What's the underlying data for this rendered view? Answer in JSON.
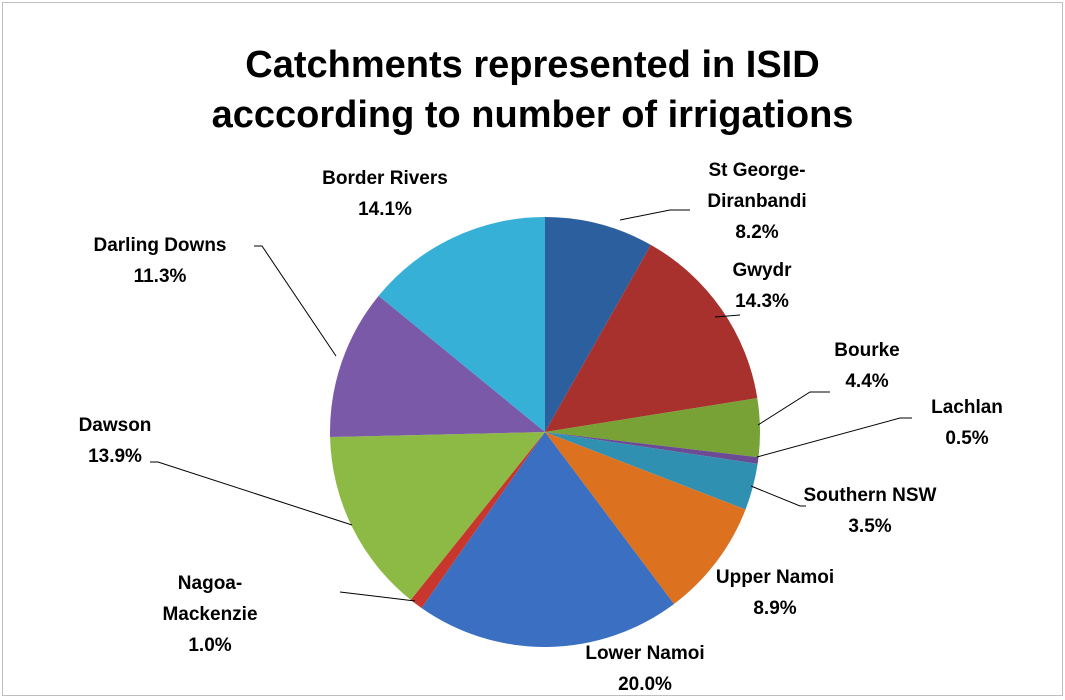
{
  "chart_data": {
    "type": "pie",
    "title": "Catchments represented in ISID acccording to number of irrigations",
    "categories": [
      "St George-Diranbandi",
      "Gwydr",
      "Bourke",
      "Lachlan",
      "Southern NSW",
      "Upper Namoi",
      "Lower Namoi",
      "Nagoa-Mackenzie",
      "Dawson",
      "Darling Downs",
      "Border Rivers"
    ],
    "values": [
      8.2,
      14.3,
      4.4,
      0.5,
      3.5,
      8.9,
      20.0,
      1.0,
      13.9,
      11.3,
      14.1
    ],
    "value_labels": [
      "8.2%",
      "14.3%",
      "4.4%",
      "0.5%",
      "3.5%",
      "8.9%",
      "20.0%",
      "1.0%",
      "13.9%",
      "11.3%",
      "14.1%"
    ],
    "colors": [
      "#2c5f9e",
      "#a8312d",
      "#78a236",
      "#6a4b94",
      "#2f90b2",
      "#dc7220",
      "#3a6fc1",
      "#c8372d",
      "#8dba44",
      "#7a5aa8",
      "#36b0d7"
    ]
  }
}
